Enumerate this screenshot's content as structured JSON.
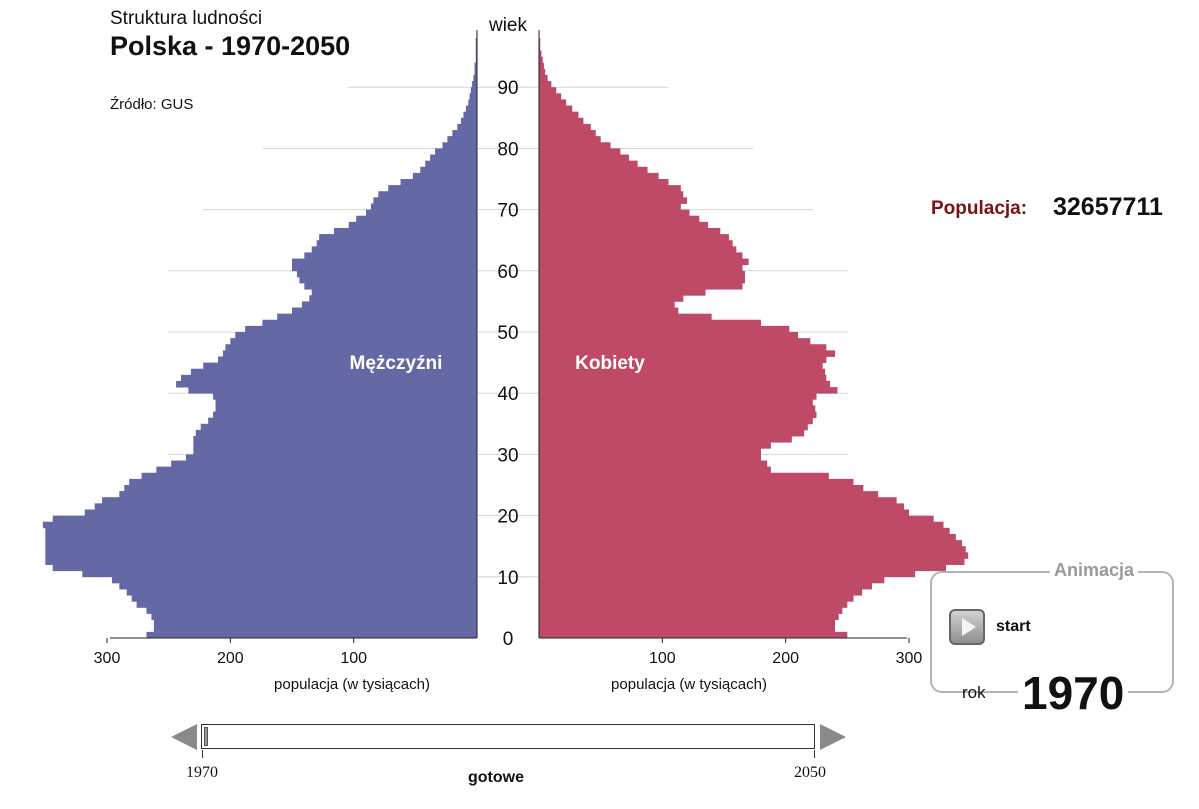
{
  "header": {
    "subtitle": "Struktura ludności",
    "title": "Polska - 1970-2050",
    "source": "Źródło: GUS"
  },
  "population": {
    "label": "Populacja:",
    "value": "32657711"
  },
  "animation": {
    "title": "Animacja",
    "start_label": "start",
    "year_label": "rok",
    "year_value": "1970"
  },
  "slider": {
    "min_label": "1970",
    "max_label": "2050",
    "status": "gotowe",
    "position": 0
  },
  "colors": {
    "men": "#6469a6",
    "women": "#be4a67",
    "grid": "#d6d6d6",
    "population_label": "#7b1113"
  },
  "chart_data": {
    "type": "bar",
    "orientation": "horizontal population pyramid",
    "yaxis_title": "wiek",
    "y_ticks": [
      0,
      10,
      20,
      30,
      40,
      50,
      60,
      70,
      80,
      90
    ],
    "x_ticks": [
      300,
      200,
      100
    ],
    "x_tick_labels": [
      "300",
      "200",
      "100"
    ],
    "xlabel": "populacja (w tysiącach)",
    "xlim": [
      0,
      300
    ],
    "ylim": [
      0,
      100
    ],
    "age_min": 0,
    "age_max": 98,
    "grid": true,
    "series": [
      {
        "name": "Mężczyźni",
        "side": "left",
        "values": [
          268,
          262,
          262,
          264,
          268,
          276,
          280,
          284,
          290,
          296,
          320,
          344,
          350,
          350,
          350,
          350,
          350,
          350,
          352,
          344,
          318,
          310,
          304,
          290,
          286,
          282,
          272,
          260,
          248,
          236,
          230,
          230,
          230,
          228,
          224,
          218,
          214,
          212,
          212,
          214,
          234,
          244,
          240,
          232,
          222,
          210,
          206,
          204,
          200,
          196,
          188,
          174,
          162,
          150,
          142,
          136,
          134,
          140,
          144,
          146,
          150,
          150,
          140,
          134,
          130,
          128,
          116,
          104,
          98,
          90,
          86,
          84,
          80,
          72,
          62,
          52,
          46,
          42,
          38,
          34,
          28,
          24,
          20,
          16,
          13,
          11,
          9,
          7,
          6,
          5,
          4,
          3,
          2,
          2,
          1,
          1,
          1,
          1,
          0
        ]
      },
      {
        "name": "Kobiety",
        "side": "right",
        "values": [
          250,
          240,
          240,
          243,
          246,
          250,
          255,
          262,
          270,
          280,
          305,
          330,
          345,
          348,
          346,
          343,
          338,
          333,
          328,
          320,
          300,
          296,
          290,
          275,
          263,
          255,
          235,
          188,
          185,
          180,
          180,
          188,
          205,
          215,
          218,
          222,
          225,
          224,
          222,
          225,
          242,
          236,
          233,
          232,
          230,
          233,
          240,
          233,
          220,
          210,
          203,
          180,
          140,
          113,
          110,
          117,
          135,
          165,
          167,
          167,
          165,
          170,
          165,
          160,
          157,
          154,
          147,
          137,
          130,
          122,
          115,
          120,
          117,
          115,
          105,
          97,
          88,
          80,
          73,
          66,
          58,
          50,
          46,
          42,
          36,
          32,
          27,
          22,
          18,
          14,
          10,
          7,
          5,
          4,
          3,
          2,
          1,
          1,
          0
        ]
      }
    ],
    "annotations": [
      "Mężczyźni",
      "Kobiety"
    ]
  }
}
